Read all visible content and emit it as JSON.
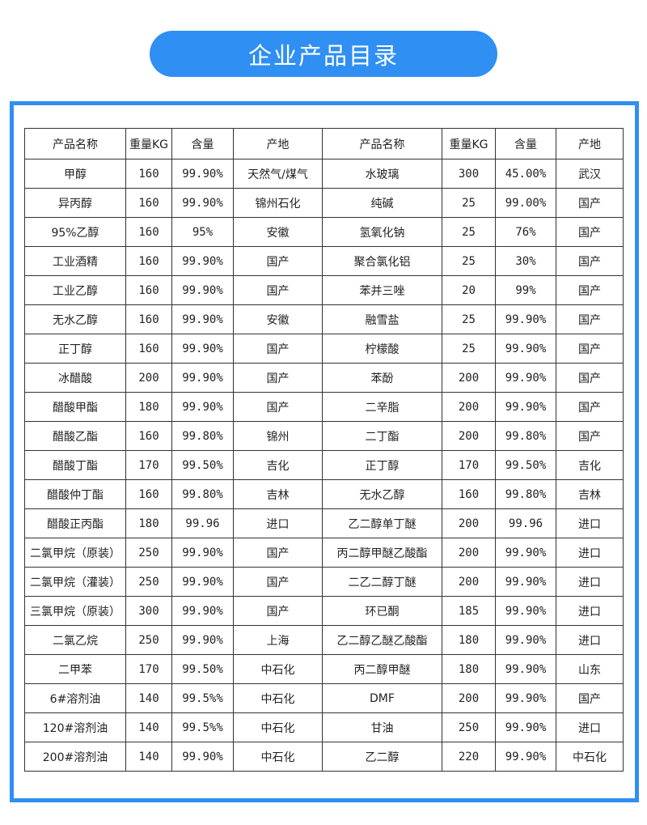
{
  "title": "企业产品目录",
  "brand_color": "#2f8ff2",
  "table": {
    "headers": [
      "产品名称",
      "重量KG",
      "含量",
      "产地",
      "产品名称",
      "重量KG",
      "含量",
      "产地"
    ],
    "rows": [
      [
        "甲醇",
        "160",
        "99.90%",
        "天然气/煤气",
        "水玻璃",
        "300",
        "45.00%",
        "武汉"
      ],
      [
        "异丙醇",
        "160",
        "99.90%",
        "锦州石化",
        "纯碱",
        "25",
        "99.00%",
        "国产"
      ],
      [
        "95%乙醇",
        "160",
        "95%",
        "安徽",
        "氢氧化钠",
        "25",
        "76%",
        "国产"
      ],
      [
        "工业酒精",
        "160",
        "99.90%",
        "国产",
        "聚合氯化铝",
        "25",
        "30%",
        "国产"
      ],
      [
        "工业乙醇",
        "160",
        "99.90%",
        "国产",
        "苯并三唑",
        "20",
        "99%",
        "国产"
      ],
      [
        "无水乙醇",
        "160",
        "99.90%",
        "安徽",
        "融雪盐",
        "25",
        "99.90%",
        "国产"
      ],
      [
        "正丁醇",
        "160",
        "99.90%",
        "国产",
        "柠檬酸",
        "25",
        "99.90%",
        "国产"
      ],
      [
        "冰醋酸",
        "200",
        "99.90%",
        "国产",
        "苯酚",
        "200",
        "99.90%",
        "国产"
      ],
      [
        "醋酸甲酯",
        "180",
        "99.90%",
        "国产",
        "二辛脂",
        "200",
        "99.90%",
        "国产"
      ],
      [
        "醋酸乙酯",
        "160",
        "99.80%",
        "锦州",
        "二丁酯",
        "200",
        "99.80%",
        "国产"
      ],
      [
        "醋酸丁酯",
        "170",
        "99.50%",
        "吉化",
        "正丁醇",
        "170",
        "99.50%",
        "吉化"
      ],
      [
        "醋酸仲丁酯",
        "160",
        "99.80%",
        "吉林",
        "无水乙醇",
        "160",
        "99.80%",
        "吉林"
      ],
      [
        "醋酸正丙酯",
        "180",
        "99.96",
        "进口",
        "乙二醇单丁醚",
        "200",
        "99.96",
        "进口"
      ],
      [
        "二氯甲烷（原装）",
        "250",
        "99.90%",
        "国产",
        "丙二醇甲醚乙酸酯",
        "200",
        "99.90%",
        "进口"
      ],
      [
        "二氯甲烷（灌装）",
        "250",
        "99.90%",
        "国产",
        "二乙二醇丁醚",
        "200",
        "99.90%",
        "进口"
      ],
      [
        "三氯甲烷（原装）",
        "300",
        "99.90%",
        "国产",
        "环已酮",
        "185",
        "99.90%",
        "进口"
      ],
      [
        "二氯乙烷",
        "250",
        "99.90%",
        "上海",
        "乙二醇乙醚乙酸酯",
        "180",
        "99.90%",
        "进口"
      ],
      [
        "二甲苯",
        "170",
        "99.50%",
        "中石化",
        "丙二醇甲醚",
        "180",
        "99.90%",
        "山东"
      ],
      [
        "6#溶剂油",
        "140",
        "99.5%%",
        "中石化",
        "DMF",
        "200",
        "99.90%",
        "国产"
      ],
      [
        "120#溶剂油",
        "140",
        "99.5%%",
        "中石化",
        "甘油",
        "250",
        "99.90%",
        "进口"
      ],
      [
        "200#溶剂油",
        "140",
        "99.90%",
        "中石化",
        "乙二醇",
        "220",
        "99.90%",
        "中石化"
      ]
    ]
  }
}
